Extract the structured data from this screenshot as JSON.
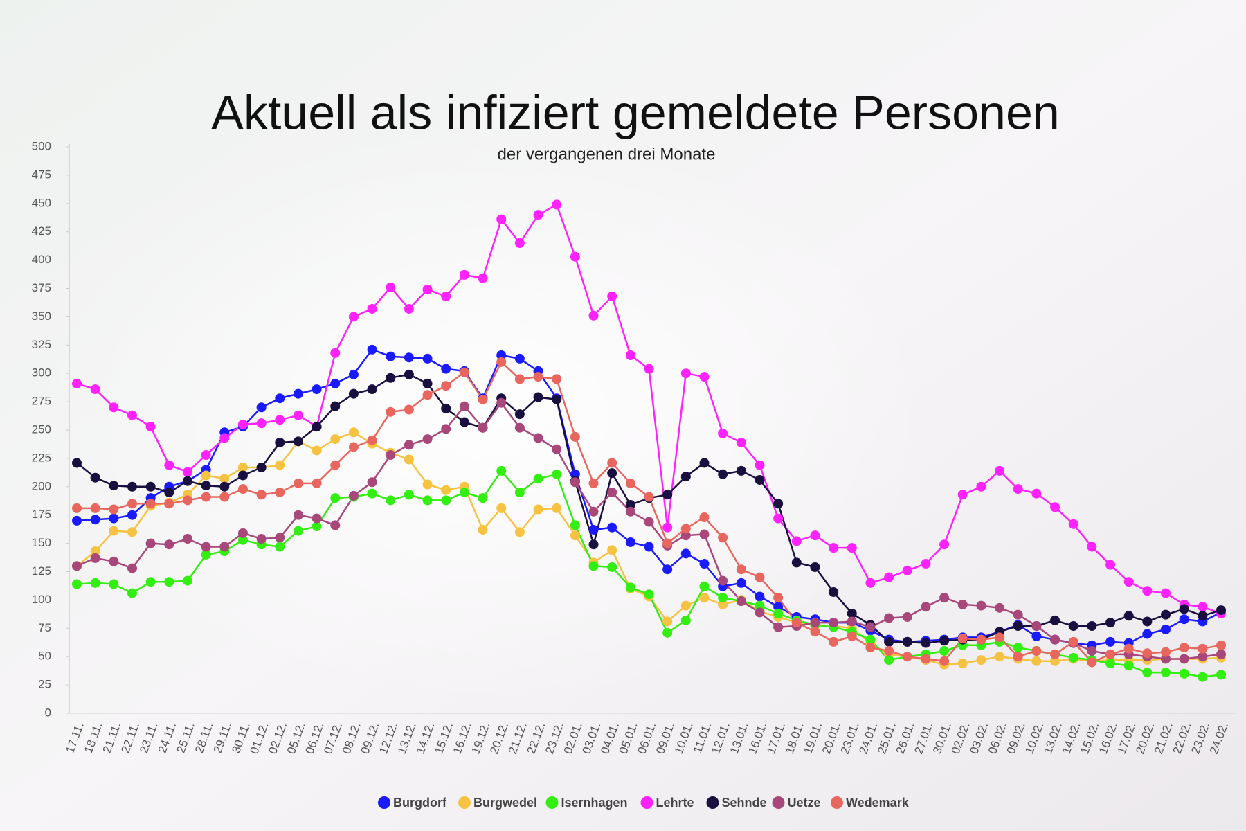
{
  "chart_data": {
    "type": "line",
    "title": "Aktuell als infiziert gemeldete Personen",
    "subtitle": "der vergangenen drei Monate",
    "categories": [
      "17.11.",
      "18.11.",
      "21.11.",
      "22.11.",
      "23.11.",
      "24.11.",
      "25.11.",
      "28.11.",
      "29.11.",
      "30.11.",
      "01.12.",
      "02.12.",
      "05.12.",
      "06.12.",
      "07.12.",
      "08.12.",
      "09.12.",
      "12.12.",
      "13.12.",
      "14.12.",
      "15.12.",
      "16.12.",
      "19.12.",
      "20.12.",
      "21.12.",
      "22.12.",
      "23.12.",
      "02.01.",
      "03.01.",
      "04.01.",
      "05.01.",
      "06.01.",
      "09.01.",
      "10.01.",
      "11.01.",
      "12.01.",
      "13.01.",
      "16.01.",
      "17.01.",
      "18.01.",
      "19.01.",
      "20.01.",
      "23.01.",
      "24.01.",
      "25.01.",
      "26.01.",
      "27.01.",
      "30.01.",
      "02.02.",
      "03.02.",
      "06.02.",
      "09.02.",
      "10.02.",
      "13.02.",
      "14.02.",
      "15.02.",
      "16.02.",
      "17.02.",
      "20.02.",
      "21.02.",
      "22.02.",
      "23.02.",
      "24.02."
    ],
    "series": [
      {
        "name": "Burgdorf",
        "color": "#1a1aff",
        "values": [
          170,
          171,
          172,
          175,
          190,
          200,
          205,
          215,
          248,
          253,
          270,
          278,
          282,
          286,
          291,
          299,
          321,
          315,
          314,
          313,
          304,
          302,
          278,
          316,
          313,
          302,
          278,
          211,
          162,
          164,
          151,
          147,
          127,
          141,
          132,
          112,
          115,
          103,
          94,
          85,
          83,
          80,
          80,
          73,
          65,
          63,
          64,
          65,
          67,
          67,
          72,
          78,
          68,
          65,
          62,
          60,
          63,
          62,
          70,
          74,
          83,
          81,
          89
        ]
      },
      {
        "name": "Burgwedel",
        "color": "#f5c242",
        "values": [
          130,
          143,
          161,
          160,
          183,
          186,
          193,
          210,
          207,
          217,
          217,
          219,
          240,
          232,
          242,
          248,
          238,
          230,
          224,
          202,
          197,
          200,
          162,
          181,
          160,
          180,
          181,
          157,
          133,
          144,
          110,
          103,
          81,
          95,
          102,
          96,
          100,
          90,
          85,
          80,
          78,
          77,
          75,
          62,
          52,
          50,
          47,
          43,
          44,
          47,
          50,
          48,
          46,
          46,
          48,
          46,
          47,
          47,
          47,
          48,
          48,
          48,
          49
        ]
      },
      {
        "name": "Isernhagen",
        "color": "#33ee11",
        "values": [
          114,
          115,
          114,
          106,
          116,
          116,
          117,
          140,
          143,
          153,
          149,
          147,
          161,
          165,
          190,
          191,
          194,
          188,
          193,
          188,
          188,
          195,
          190,
          214,
          195,
          207,
          211,
          166,
          130,
          129,
          111,
          105,
          71,
          82,
          112,
          102,
          99,
          95,
          88,
          82,
          78,
          76,
          72,
          65,
          47,
          50,
          52,
          55,
          60,
          60,
          63,
          58,
          55,
          52,
          49,
          47,
          44,
          42,
          36,
          36,
          35,
          32,
          34
        ]
      },
      {
        "name": "Lehrte",
        "color": "#ff22ff",
        "values": [
          291,
          286,
          270,
          263,
          253,
          219,
          213,
          228,
          243,
          255,
          256,
          259,
          263,
          253,
          318,
          350,
          357,
          376,
          357,
          374,
          368,
          387,
          384,
          436,
          415,
          440,
          449,
          403,
          351,
          368,
          316,
          304,
          164,
          300,
          297,
          247,
          239,
          219,
          172,
          152,
          157,
          146,
          146,
          115,
          120,
          126,
          132,
          149,
          193,
          200,
          214,
          198,
          194,
          182,
          167,
          147,
          131,
          116,
          108,
          106,
          96,
          94,
          88
        ]
      },
      {
        "name": "Sehnde",
        "color": "#1a1040",
        "values": [
          221,
          208,
          201,
          200,
          200,
          195,
          205,
          201,
          200,
          210,
          217,
          239,
          240,
          253,
          271,
          282,
          286,
          296,
          299,
          291,
          269,
          257,
          252,
          278,
          264,
          279,
          277,
          205,
          149,
          212,
          184,
          190,
          193,
          209,
          221,
          211,
          214,
          206,
          185,
          133,
          129,
          107,
          88,
          78,
          63,
          63,
          62,
          64,
          65,
          65,
          72,
          77,
          77,
          82,
          77,
          77,
          80,
          86,
          81,
          87,
          92,
          86,
          91
        ]
      },
      {
        "name": "Uetze",
        "color": "#a8477a",
        "values": [
          130,
          137,
          134,
          128,
          150,
          149,
          154,
          147,
          147,
          159,
          154,
          155,
          175,
          172,
          166,
          192,
          204,
          228,
          237,
          242,
          251,
          271,
          252,
          274,
          252,
          243,
          233,
          204,
          178,
          195,
          178,
          169,
          148,
          157,
          158,
          117,
          99,
          89,
          76,
          77,
          80,
          80,
          81,
          76,
          84,
          85,
          94,
          102,
          96,
          95,
          93,
          87,
          77,
          65,
          62,
          55,
          52,
          52,
          50,
          48,
          48,
          50,
          52
        ]
      },
      {
        "name": "Wedemark",
        "color": "#e8665e",
        "values": [
          181,
          181,
          180,
          185,
          185,
          185,
          188,
          191,
          191,
          198,
          193,
          195,
          203,
          203,
          219,
          235,
          241,
          266,
          268,
          281,
          289,
          301,
          277,
          310,
          295,
          297,
          295,
          244,
          203,
          221,
          203,
          191,
          150,
          163,
          173,
          155,
          127,
          120,
          102,
          80,
          72,
          63,
          68,
          58,
          55,
          50,
          48,
          46,
          66,
          65,
          67,
          50,
          55,
          52,
          63,
          45,
          52,
          57,
          53,
          54,
          58,
          57,
          60
        ]
      }
    ],
    "ylim": [
      0,
      500
    ],
    "yticks": [
      0,
      25,
      50,
      75,
      100,
      125,
      150,
      175,
      200,
      225,
      250,
      275,
      300,
      325,
      350,
      375,
      400,
      425,
      450,
      475,
      500
    ],
    "grid": false
  }
}
